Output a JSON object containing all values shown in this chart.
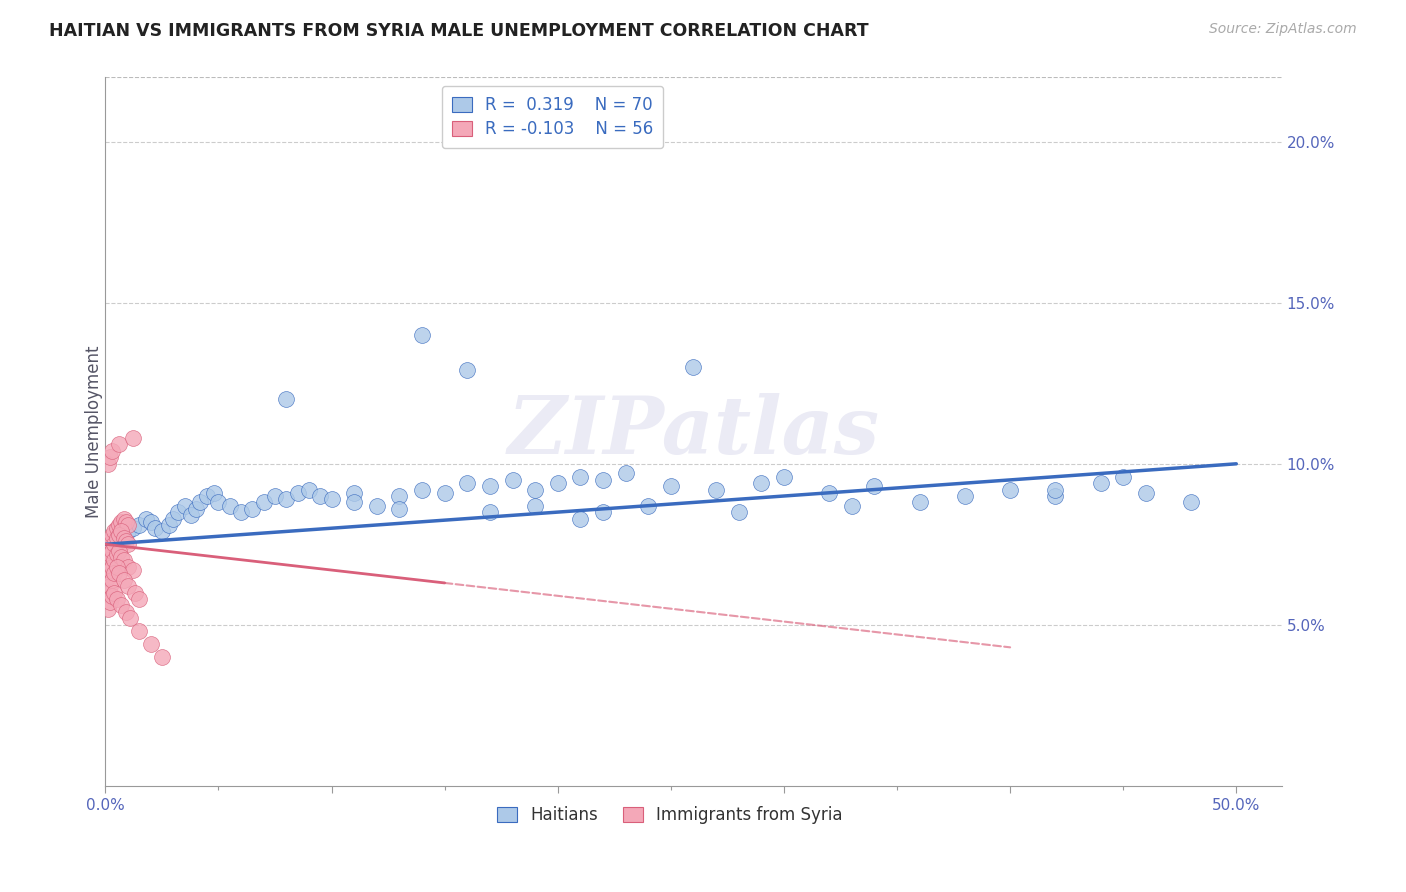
{
  "title": "HAITIAN VS IMMIGRANTS FROM SYRIA MALE UNEMPLOYMENT CORRELATION CHART",
  "source_text": "Source: ZipAtlas.com",
  "ylabel": "Male Unemployment",
  "legend_label1": "Haitians",
  "legend_label2": "Immigrants from Syria",
  "r1": 0.319,
  "n1": 70,
  "r2": -0.103,
  "n2": 56,
  "color1": "#adc9e8",
  "color2": "#f4a8b8",
  "line_color1": "#3a6bbf",
  "line_color2": "#d95f7a",
  "xlim": [
    0.0,
    0.52
  ],
  "ylim": [
    0.0,
    0.22
  ],
  "plot_ylim": [
    -0.01,
    0.22
  ],
  "yticks_right": [
    0.05,
    0.1,
    0.15,
    0.2
  ],
  "ytick_labels_right": [
    "5.0%",
    "10.0%",
    "15.0%",
    "20.0%"
  ],
  "watermark": "ZIPatlas",
  "haitians_x": [
    0.005,
    0.008,
    0.01,
    0.012,
    0.015,
    0.018,
    0.02,
    0.022,
    0.025,
    0.028,
    0.03,
    0.032,
    0.035,
    0.038,
    0.04,
    0.042,
    0.045,
    0.048,
    0.05,
    0.055,
    0.06,
    0.065,
    0.07,
    0.075,
    0.08,
    0.085,
    0.09,
    0.095,
    0.1,
    0.11,
    0.12,
    0.13,
    0.14,
    0.15,
    0.16,
    0.17,
    0.18,
    0.19,
    0.2,
    0.21,
    0.22,
    0.23,
    0.25,
    0.27,
    0.29,
    0.3,
    0.32,
    0.34,
    0.36,
    0.38,
    0.4,
    0.42,
    0.44,
    0.46,
    0.48,
    0.13,
    0.16,
    0.19,
    0.22,
    0.26,
    0.08,
    0.11,
    0.14,
    0.17,
    0.21,
    0.24,
    0.28,
    0.33,
    0.42,
    0.45
  ],
  "haitians_y": [
    0.075,
    0.077,
    0.079,
    0.08,
    0.081,
    0.083,
    0.082,
    0.08,
    0.079,
    0.081,
    0.083,
    0.085,
    0.087,
    0.084,
    0.086,
    0.088,
    0.09,
    0.091,
    0.088,
    0.087,
    0.085,
    0.086,
    0.088,
    0.09,
    0.089,
    0.091,
    0.092,
    0.09,
    0.089,
    0.091,
    0.087,
    0.09,
    0.092,
    0.091,
    0.094,
    0.093,
    0.095,
    0.092,
    0.094,
    0.096,
    0.095,
    0.097,
    0.093,
    0.092,
    0.094,
    0.096,
    0.091,
    0.093,
    0.088,
    0.09,
    0.092,
    0.09,
    0.094,
    0.091,
    0.088,
    0.086,
    0.129,
    0.087,
    0.085,
    0.13,
    0.12,
    0.088,
    0.14,
    0.085,
    0.083,
    0.087,
    0.085,
    0.087,
    0.092,
    0.096
  ],
  "syria_x": [
    0.001,
    0.002,
    0.003,
    0.004,
    0.005,
    0.006,
    0.007,
    0.008,
    0.009,
    0.01,
    0.001,
    0.002,
    0.003,
    0.004,
    0.005,
    0.006,
    0.007,
    0.008,
    0.009,
    0.01,
    0.001,
    0.002,
    0.003,
    0.004,
    0.005,
    0.006,
    0.007,
    0.008,
    0.01,
    0.012,
    0.001,
    0.002,
    0.003,
    0.004,
    0.005,
    0.006,
    0.008,
    0.01,
    0.013,
    0.015,
    0.001,
    0.002,
    0.003,
    0.004,
    0.005,
    0.007,
    0.009,
    0.011,
    0.015,
    0.02,
    0.025,
    0.001,
    0.002,
    0.003,
    0.006,
    0.012
  ],
  "syria_y": [
    0.075,
    0.076,
    0.078,
    0.079,
    0.08,
    0.081,
    0.082,
    0.083,
    0.082,
    0.081,
    0.07,
    0.072,
    0.073,
    0.075,
    0.077,
    0.078,
    0.079,
    0.077,
    0.076,
    0.075,
    0.065,
    0.067,
    0.068,
    0.07,
    0.072,
    0.073,
    0.071,
    0.07,
    0.068,
    0.067,
    0.06,
    0.062,
    0.064,
    0.066,
    0.068,
    0.066,
    0.064,
    0.062,
    0.06,
    0.058,
    0.055,
    0.057,
    0.059,
    0.06,
    0.058,
    0.056,
    0.054,
    0.052,
    0.048,
    0.044,
    0.04,
    0.1,
    0.102,
    0.104,
    0.106,
    0.108
  ]
}
